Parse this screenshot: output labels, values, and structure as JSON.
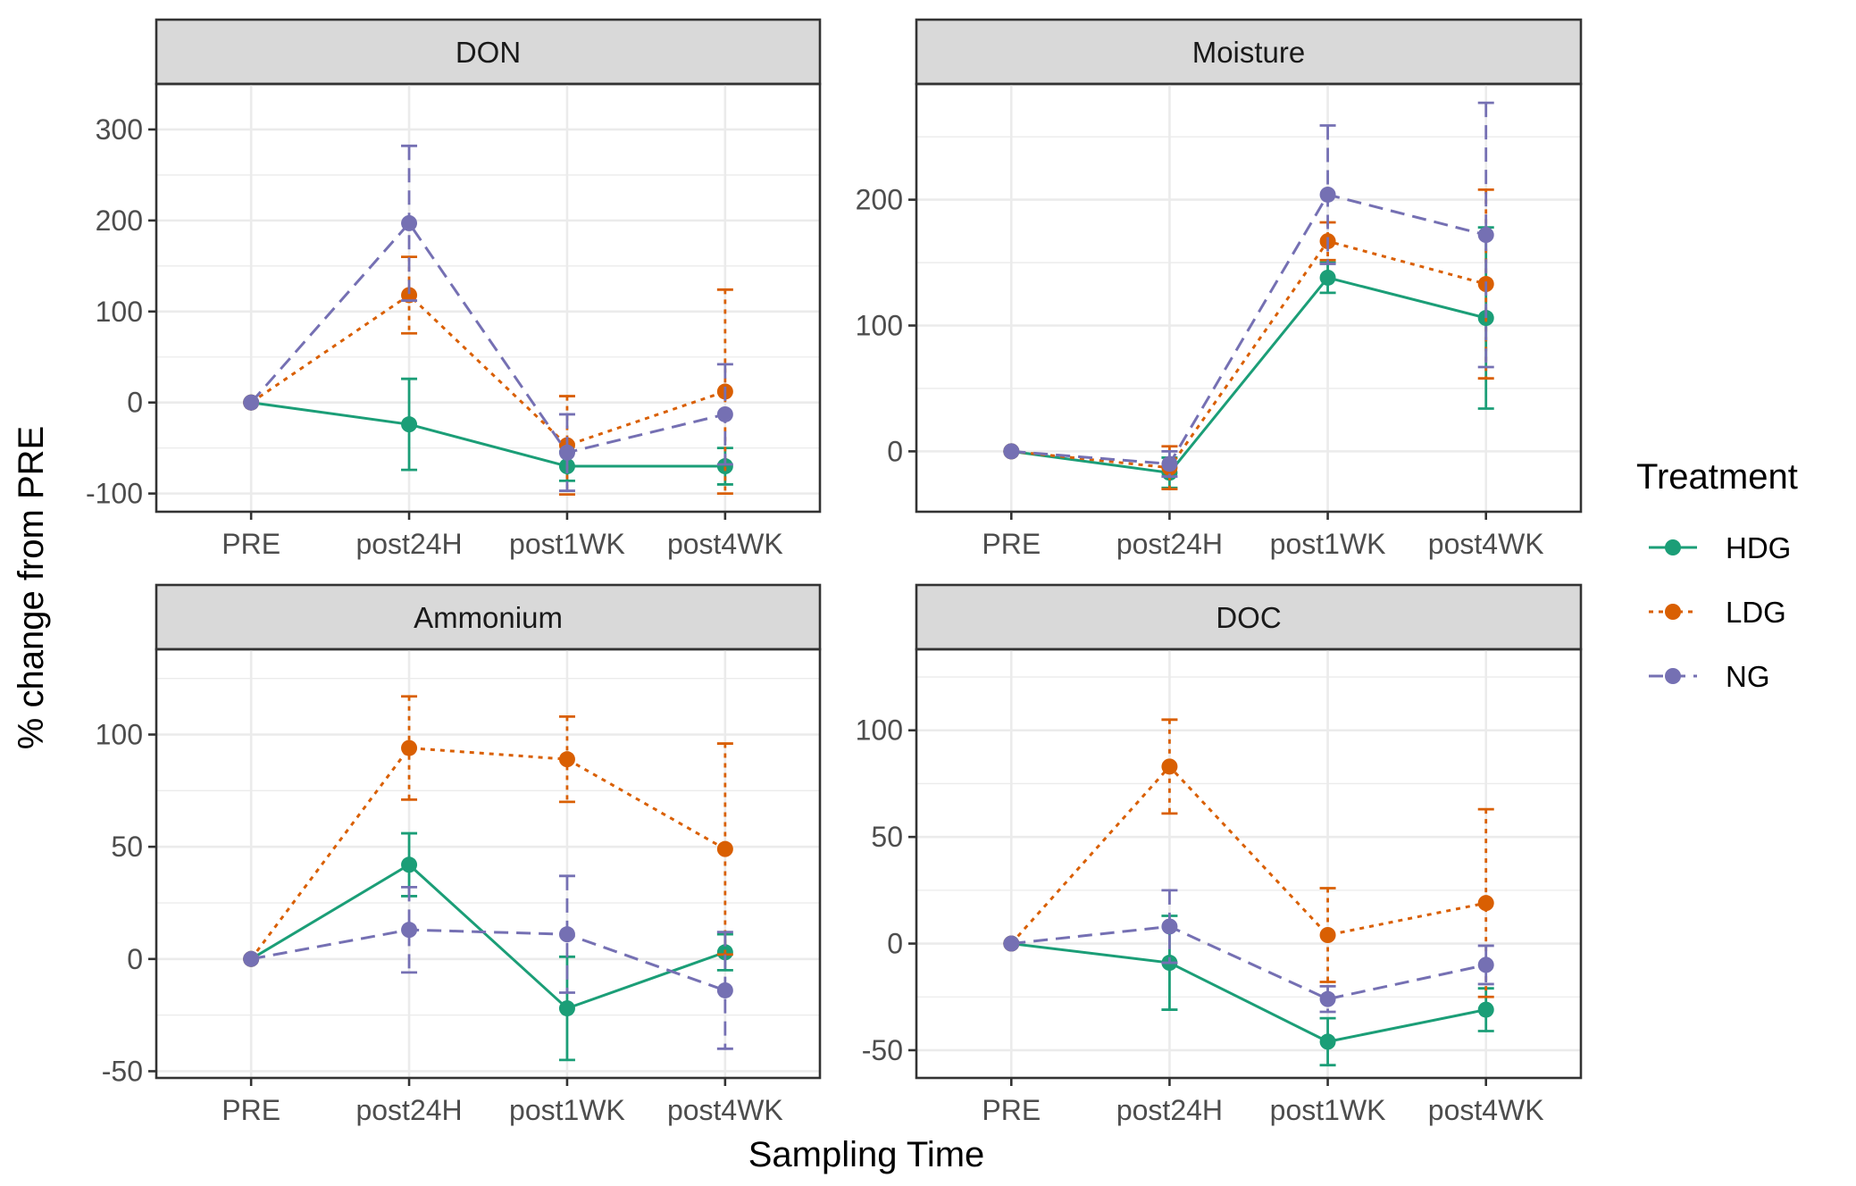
{
  "chart_data": {
    "type": "line",
    "xlabel": "Sampling Time",
    "ylabel": "% change from PRE",
    "categories": [
      "PRE",
      "post24H",
      "post1WK",
      "post4WK"
    ],
    "legend": {
      "title": "Treatment",
      "placement": "right",
      "entries": [
        {
          "name": "HDG",
          "color": "#1b9e77",
          "linetype": "solid"
        },
        {
          "name": "LDG",
          "color": "#d95f02",
          "linetype": "dotted"
        },
        {
          "name": "NG",
          "color": "#7570b3",
          "linetype": "dashed"
        }
      ]
    },
    "grid": true,
    "panels": [
      {
        "title": "DON",
        "ylim": [
          -120,
          350
        ],
        "yticks": [
          -100,
          0,
          100,
          200,
          300
        ],
        "yticklabels": [
          "-100",
          "0",
          "100",
          "200",
          "300"
        ],
        "series": [
          {
            "name": "HDG",
            "values": [
              0,
              -24,
              -70,
              -70
            ],
            "err": [
              0,
              50,
              16,
              20
            ]
          },
          {
            "name": "LDG",
            "values": [
              0,
              118,
              -47,
              12
            ],
            "err": [
              0,
              42,
              54,
              112
            ]
          },
          {
            "name": "NG",
            "values": [
              0,
              197,
              -55,
              -13
            ],
            "err": [
              0,
              85,
              42,
              55
            ]
          }
        ]
      },
      {
        "title": "Moisture",
        "ylim": [
          -48,
          292
        ],
        "yticks": [
          0,
          100,
          200
        ],
        "yticklabels": [
          "0",
          "100",
          "200"
        ],
        "series": [
          {
            "name": "HDG",
            "values": [
              0,
              -17,
              138,
              106
            ],
            "err": [
              0,
              12,
              12,
              72
            ]
          },
          {
            "name": "LDG",
            "values": [
              0,
              -13,
              167,
              133
            ],
            "err": [
              0,
              17,
              15,
              75
            ]
          },
          {
            "name": "NG",
            "values": [
              0,
              -10,
              204,
              172
            ],
            "err": [
              0,
              10,
              55,
              105
            ]
          }
        ]
      },
      {
        "title": "Ammonium",
        "ylim": [
          -53,
          138
        ],
        "yticks": [
          -50,
          0,
          50,
          100
        ],
        "yticklabels": [
          "-50",
          "0",
          "50",
          "100"
        ],
        "series": [
          {
            "name": "HDG",
            "values": [
              0,
              42,
              -22,
              3
            ],
            "err": [
              0,
              14,
              23,
              8
            ]
          },
          {
            "name": "LDG",
            "values": [
              0,
              94,
              89,
              49
            ],
            "err": [
              0,
              23,
              19,
              47
            ]
          },
          {
            "name": "NG",
            "values": [
              0,
              13,
              11,
              -14
            ],
            "err": [
              0,
              19,
              26,
              26
            ]
          }
        ]
      },
      {
        "title": "DOC",
        "ylim": [
          -63,
          138
        ],
        "yticks": [
          -50,
          0,
          50,
          100
        ],
        "yticklabels": [
          "-50",
          "0",
          "50",
          "100"
        ],
        "series": [
          {
            "name": "HDG",
            "values": [
              0,
              -9,
              -46,
              -31
            ],
            "err": [
              0,
              22,
              11,
              10
            ]
          },
          {
            "name": "LDG",
            "values": [
              0,
              83,
              4,
              19
            ],
            "err": [
              0,
              22,
              22,
              44
            ]
          },
          {
            "name": "NG",
            "values": [
              0,
              8,
              -26,
              -10
            ],
            "err": [
              0,
              17,
              6,
              9
            ]
          }
        ]
      }
    ]
  }
}
